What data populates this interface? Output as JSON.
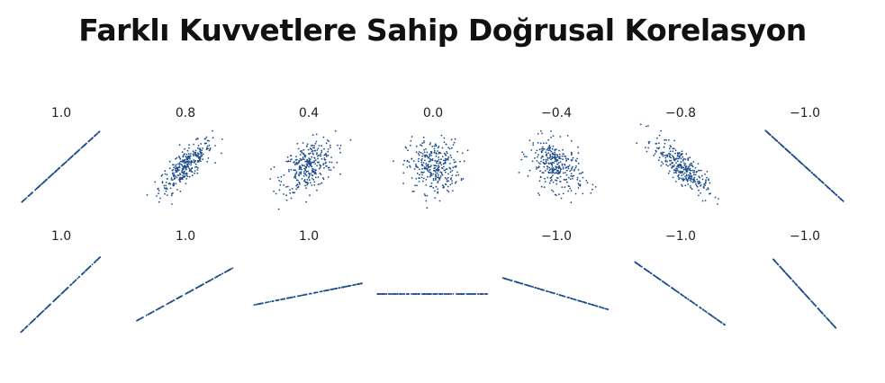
{
  "title": "Farklı Kuvvetlere Sahip Doğrusal Korelasyon",
  "chart_data": {
    "type": "scatter",
    "title": "Farklı Kuvvetlere Sahip Doğrusal Korelasyon",
    "rows": [
      {
        "panels": [
          {
            "label": "1.0",
            "correlation": 1.0
          },
          {
            "label": "0.8",
            "correlation": 0.8
          },
          {
            "label": "0.4",
            "correlation": 0.4
          },
          {
            "label": "0.0",
            "correlation": 0.0
          },
          {
            "label": "−0.4",
            "correlation": -0.4
          },
          {
            "label": "−0.8",
            "correlation": -0.8
          },
          {
            "label": "−1.0",
            "correlation": -1.0
          }
        ]
      },
      {
        "panels": [
          {
            "label": "1.0",
            "correlation": 1.0,
            "slope": 0.95
          },
          {
            "label": "1.0",
            "correlation": 1.0,
            "slope": 0.55
          },
          {
            "label": "1.0",
            "correlation": 1.0,
            "slope": 0.2
          },
          {
            "label": "",
            "correlation": null,
            "slope": 0.0
          },
          {
            "label": "−1.0",
            "correlation": -1.0,
            "slope": -0.3
          },
          {
            "label": "−1.0",
            "correlation": -1.0,
            "slope": -0.7
          },
          {
            "label": "−1.0",
            "correlation": -1.0,
            "slope": -1.1
          }
        ]
      }
    ],
    "point_color": "#1f4e8c",
    "grid": false,
    "axes_visible": false,
    "legend": "none"
  }
}
